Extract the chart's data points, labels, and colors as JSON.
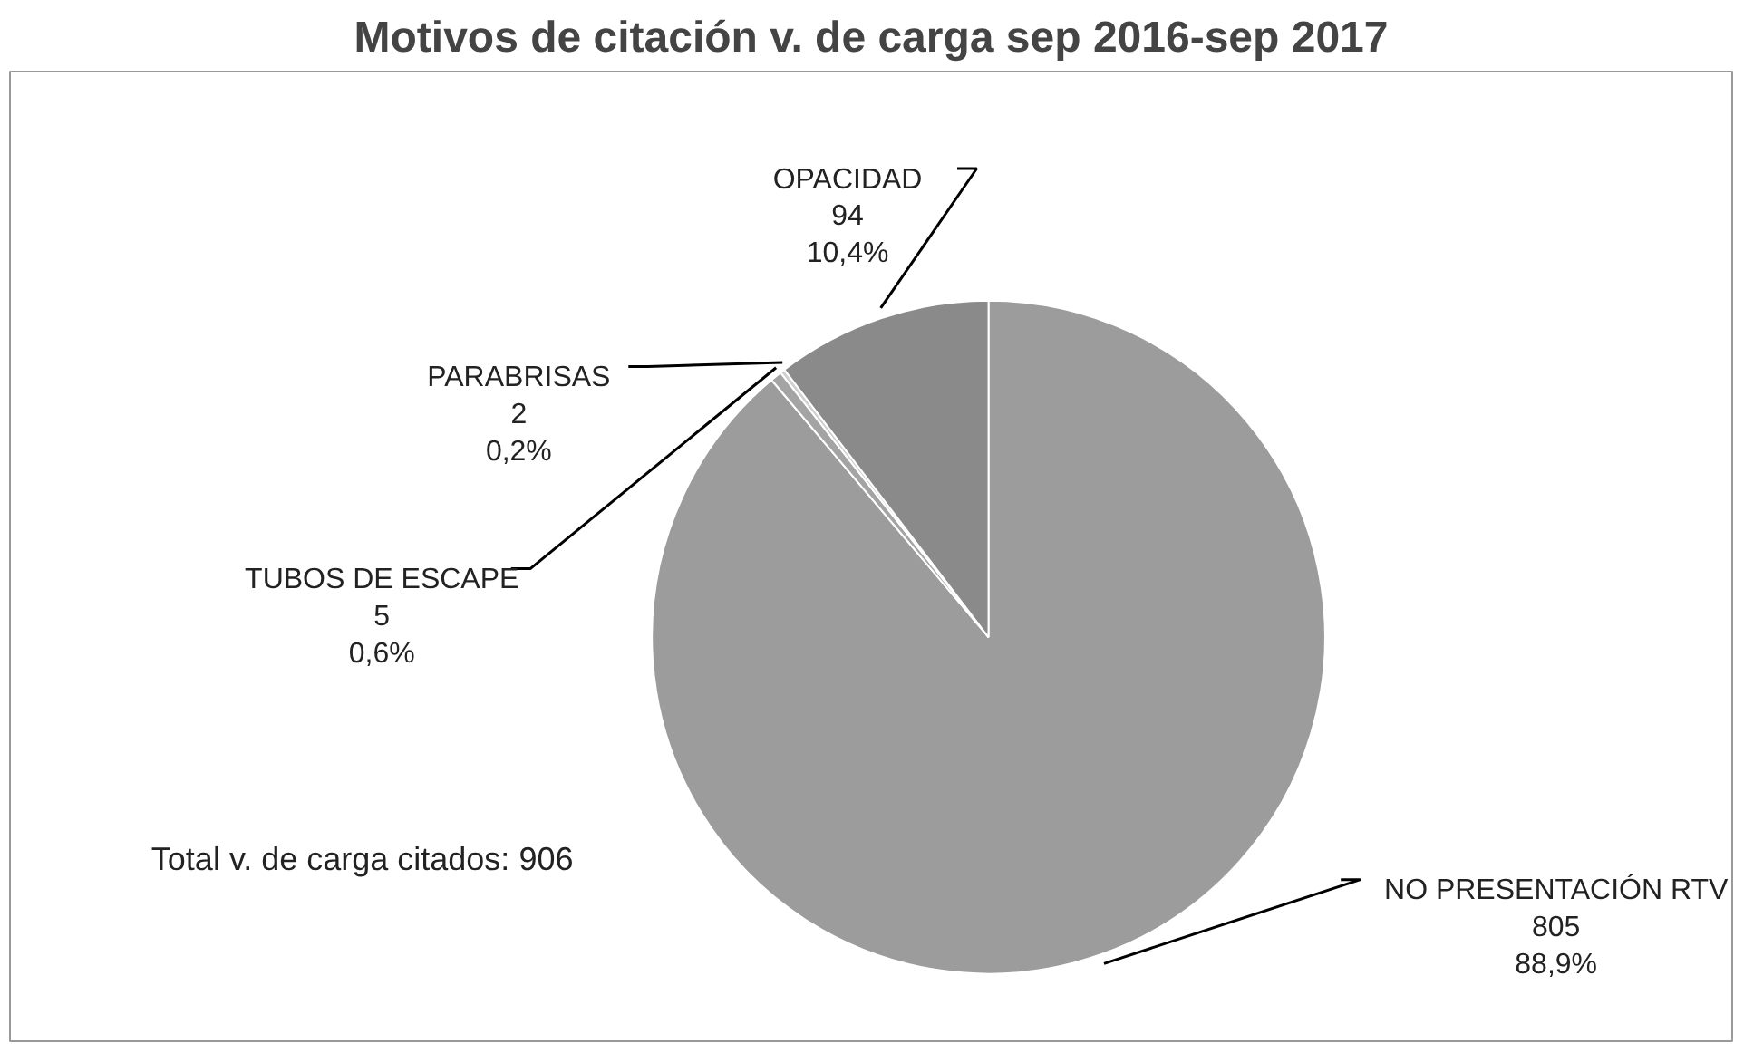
{
  "chart_data": {
    "type": "pie",
    "title": "Motivos de citación v. de carga sep 2016-sep 2017",
    "categories": [
      "NO PRESENTACIÓN RTV",
      "TUBOS DE ESCAPE",
      "PARABRISAS",
      "OPACIDAD"
    ],
    "values": [
      805,
      5,
      2,
      94
    ],
    "colors": [
      "#9c9c9c",
      "#a4a4a4",
      "#d0d0d0",
      "#8a8a8a"
    ],
    "data_labels": true,
    "value_labels": [
      "805\n88,9%",
      "5\n0,6%",
      "2\n0,2%",
      "94\n10,4%"
    ],
    "annotations": [
      "Total v. de carga citados: 906"
    ]
  }
}
